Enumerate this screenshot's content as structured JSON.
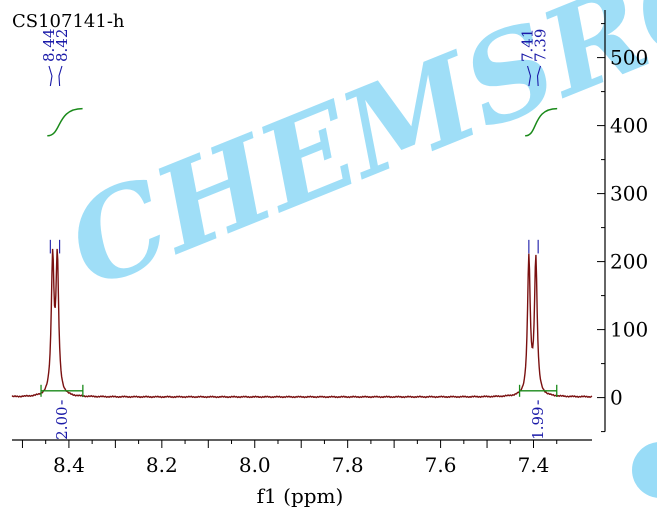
{
  "chart_data": {
    "type": "line",
    "title": "CS107141-h",
    "watermark": "CHEMSRC",
    "xlabel": "f1 (ppm)",
    "ylabel": "",
    "x_reversed": true,
    "xlim": [
      8.5225,
      7.2741
    ],
    "ylim": [
      -55,
      570
    ],
    "x_ticks": [
      8.4,
      8.2,
      8.0,
      7.8,
      7.6,
      7.4
    ],
    "x_tick_labels": [
      "8.4",
      "8.2",
      "8.0",
      "7.8",
      "7.6",
      "7.4"
    ],
    "y_ticks": [
      0,
      100,
      200,
      300,
      400,
      500
    ],
    "y_tick_labels": [
      "0",
      "100",
      "200",
      "300",
      "400",
      "500"
    ],
    "peak_labels": [
      {
        "x": 8.44,
        "text": "8.44"
      },
      {
        "x": 8.42,
        "text": "8.42"
      },
      {
        "x": 7.41,
        "text": "7.41"
      },
      {
        "x": 7.39,
        "text": "7.39"
      }
    ],
    "integrals": [
      {
        "from": 8.46,
        "to": 8.37,
        "value": "2.00"
      },
      {
        "from": 7.43,
        "to": 7.35,
        "value": "1.99"
      }
    ],
    "series": [
      {
        "peaks": [
          {
            "x": 8.435,
            "height": 197
          },
          {
            "x": 8.425,
            "height": 197
          },
          {
            "x": 7.41,
            "height": 200
          },
          {
            "x": 7.395,
            "height": 200
          }
        ],
        "halfwidth": 0.0035,
        "baseline": 1
      }
    ],
    "colors": {
      "spectrum": "#7a1010",
      "integral": "#1a8a1a",
      "annotation": "#1a1aa8",
      "axis": "#000000",
      "watermark": "#7fd3f5"
    }
  }
}
